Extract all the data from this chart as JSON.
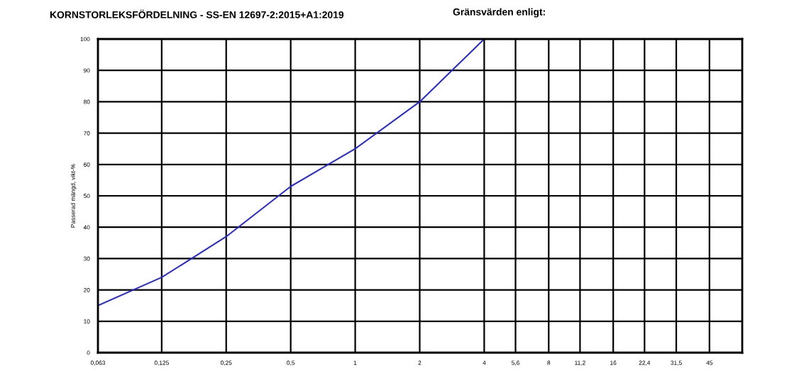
{
  "chart_data": {
    "type": "line",
    "title": "KORNSTORLEKSFÖRDELNING - SS-EN 12697-2:2015+A1:2019",
    "annotations": [
      "Gränsvärden enligt:"
    ],
    "ylabel": "Passerad mängd, vikt-%",
    "log": "x",
    "x": [
      0.063,
      0.125,
      0.25,
      0.5,
      1,
      2,
      4
    ],
    "series": [
      {
        "color": "#2a2ad0",
        "values": [
          15,
          24,
          37,
          53,
          65,
          80,
          100
        ]
      }
    ],
    "xlim": [
      0.063,
      64
    ],
    "xticks": [
      {
        "value": 0.063,
        "label": "0,063"
      },
      {
        "value": 0.125,
        "label": "0,125"
      },
      {
        "value": 0.25,
        "label": "0,25"
      },
      {
        "value": 0.5,
        "label": "0,5"
      },
      1,
      2,
      4,
      {
        "value": 5.6,
        "label": "5,6"
      },
      8,
      {
        "value": 11.2,
        "label": "11,2"
      },
      16,
      {
        "value": 22.4,
        "label": "22,4"
      },
      {
        "value": 31.5,
        "label": "31,5"
      },
      45
    ],
    "ylim": [
      0,
      100
    ],
    "yticks": [
      0,
      10,
      20,
      30,
      40,
      50,
      60,
      70,
      80,
      90,
      100
    ],
    "grid": true,
    "marker": "none",
    "line_style": "solid",
    "legend": false
  }
}
